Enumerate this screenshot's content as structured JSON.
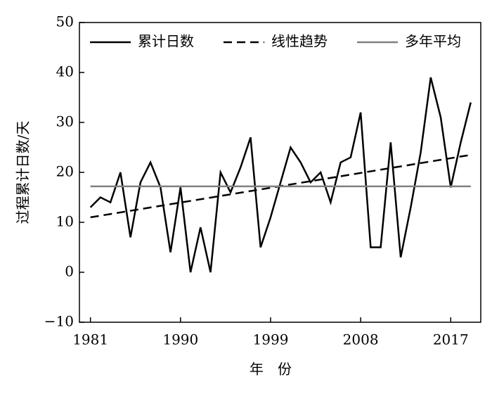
{
  "chart_data": {
    "type": "line",
    "x_label": "年　份",
    "y_label": "过程累计日数/天",
    "xlim": [
      1979.9,
      2020
    ],
    "ylim": [
      -10,
      50
    ],
    "xticks": [
      1981,
      1990,
      1999,
      2008,
      2017
    ],
    "yticks": [
      {
        "value": -10,
        "label": "−10"
      },
      0,
      10,
      20,
      30,
      40,
      50
    ],
    "legend": "top",
    "series": [
      {
        "name": "累计日数",
        "color": "#000000",
        "style": "solid",
        "x": [
          1981,
          1982,
          1983,
          1984,
          1985,
          1986,
          1987,
          1988,
          1989,
          1990,
          1991,
          1992,
          1993,
          1994,
          1995,
          1996,
          1997,
          1998,
          1999,
          2000,
          2001,
          2002,
          2003,
          2004,
          2005,
          2006,
          2007,
          2008,
          2009,
          2010,
          2011,
          2012,
          2013,
          2014,
          2015,
          2016,
          2017,
          2018,
          2019
        ],
        "values": [
          13,
          15,
          14,
          20,
          7,
          18,
          22,
          17,
          4,
          17,
          0,
          9,
          0,
          20,
          16,
          21,
          27,
          5,
          11,
          18,
          25,
          22,
          18,
          20,
          14,
          22,
          23,
          32,
          5,
          5,
          26,
          3,
          13,
          24,
          39,
          31,
          17,
          26,
          34
        ]
      },
      {
        "name": "线性趋势",
        "color": "#000000",
        "style": "dashed",
        "x": [
          1981,
          2019
        ],
        "values": [
          11,
          23.5
        ]
      },
      {
        "name": "多年平均",
        "color": "#808080",
        "style": "solid",
        "x": [
          1981,
          2019
        ],
        "values": [
          17.2,
          17.2
        ]
      }
    ]
  }
}
